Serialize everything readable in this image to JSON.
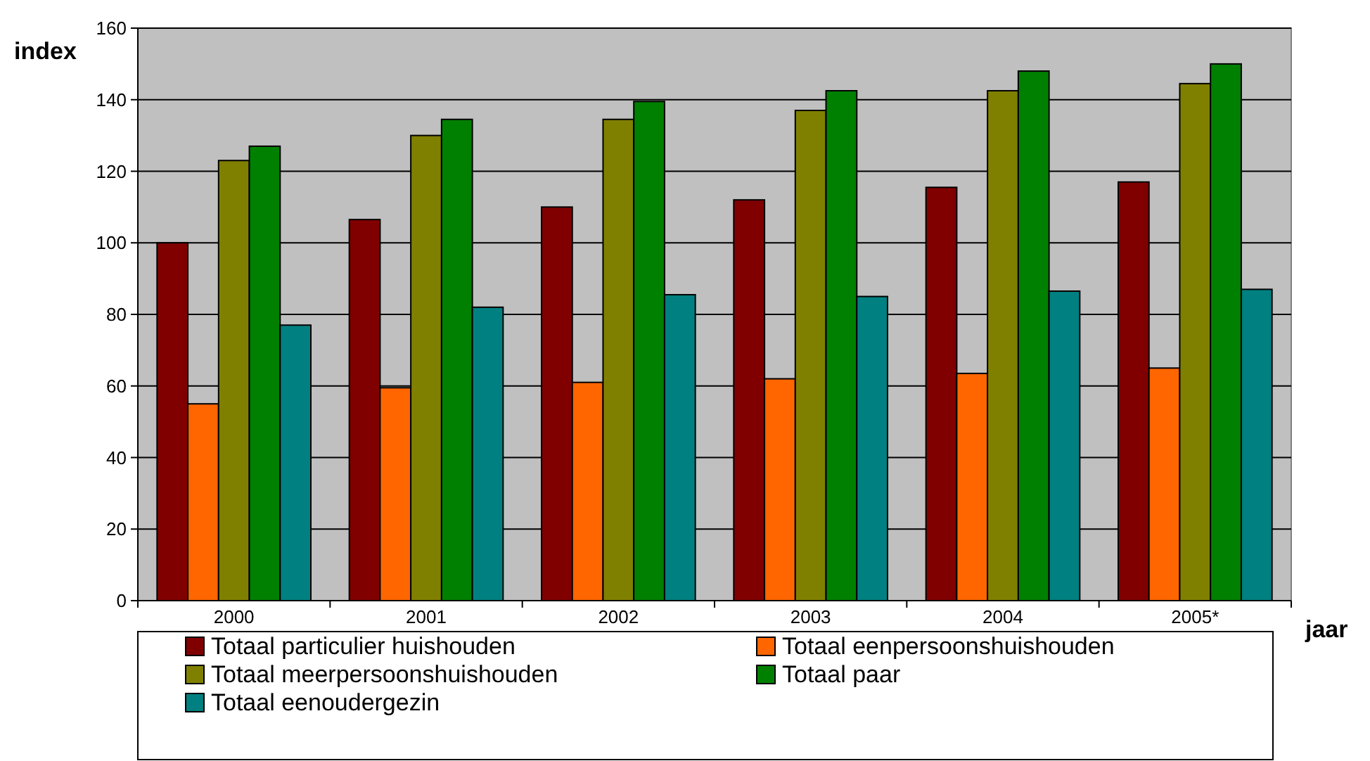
{
  "chart_data": {
    "type": "bar",
    "ylabel": "index",
    "xlabel": "jaar",
    "categories": [
      "2000",
      "2001",
      "2002",
      "2003",
      "2004",
      "2005*"
    ],
    "ylim": [
      0,
      160
    ],
    "yticks": [
      0,
      20,
      40,
      60,
      80,
      100,
      120,
      140,
      160
    ],
    "grid": "y",
    "legend": "bottom",
    "series": [
      {
        "name": "Totaal particulier huishouden",
        "color": "#800000",
        "values": [
          100,
          106.5,
          110,
          112,
          115.5,
          117
        ]
      },
      {
        "name": "Totaal eenpersoonshuishouden",
        "color": "#ff6600",
        "values": [
          55,
          59.5,
          61,
          62,
          63.5,
          65
        ]
      },
      {
        "name": "Totaal meerpersoonshuishouden",
        "color": "#808000",
        "values": [
          123,
          130,
          134.5,
          137,
          142.5,
          144.5
        ]
      },
      {
        "name": "Totaal paar",
        "color": "#008000",
        "values": [
          127,
          134.5,
          139.5,
          142.5,
          148,
          150
        ]
      },
      {
        "name": "Totaal eenoudergezin",
        "color": "#008080",
        "values": [
          77,
          82,
          85.5,
          85,
          86.5,
          87
        ]
      }
    ]
  }
}
